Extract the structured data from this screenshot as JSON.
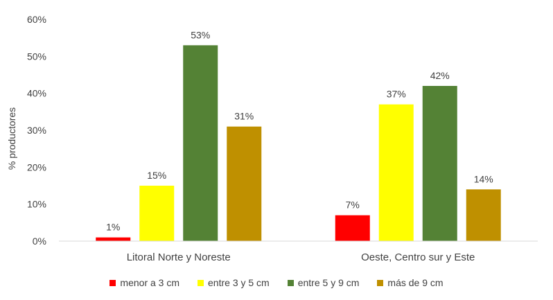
{
  "chart_data": {
    "type": "bar",
    "title": "",
    "xlabel": "",
    "ylabel": "% productores",
    "ylim": [
      0,
      60
    ],
    "yticks": [
      "0%",
      "10%",
      "20%",
      "30%",
      "40%",
      "50%",
      "60%"
    ],
    "grid": false,
    "legend_position": "bottom",
    "categories": [
      "Litoral Norte y Noreste",
      "Oeste, Centro sur y Este"
    ],
    "series": [
      {
        "name": "menor a 3 cm",
        "color": "#FF0000",
        "values": [
          1,
          7
        ],
        "labels": [
          "1%",
          "7%"
        ]
      },
      {
        "name": "entre 3 y 5 cm",
        "color": "#FFFF00",
        "values": [
          15,
          37
        ],
        "labels": [
          "15%",
          "37%"
        ]
      },
      {
        "name": "entre 5 y 9 cm",
        "color": "#548235",
        "values": [
          53,
          42
        ],
        "labels": [
          "53%",
          "42%"
        ]
      },
      {
        "name": "más de 9 cm",
        "color": "#BF9000",
        "values": [
          31,
          14
        ],
        "labels": [
          "31%",
          "14%"
        ]
      }
    ]
  }
}
